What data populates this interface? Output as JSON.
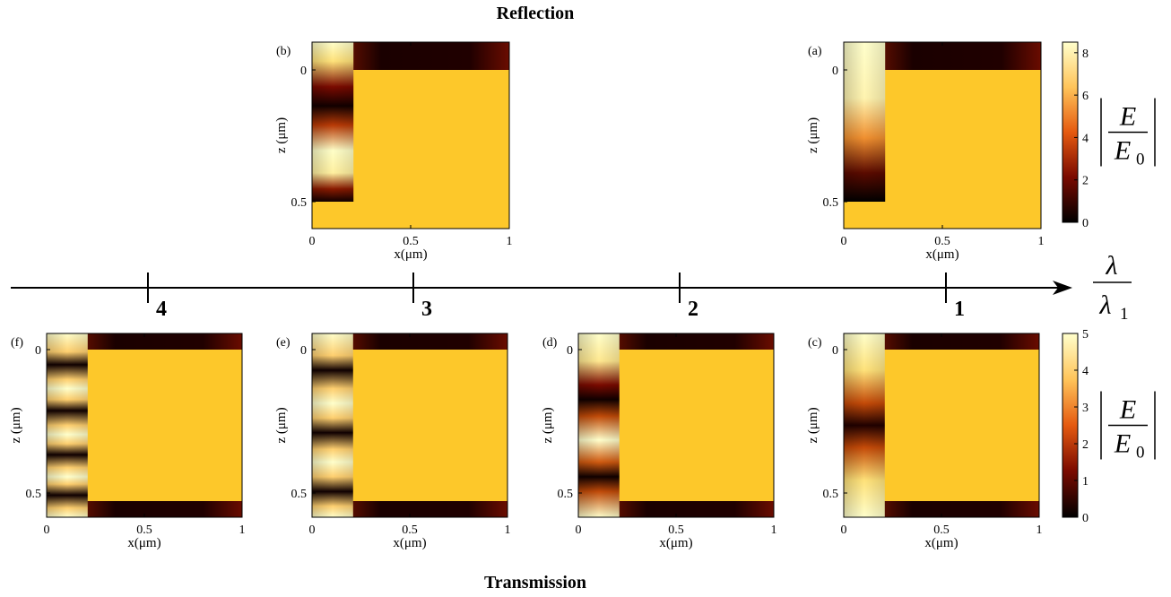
{
  "titles": {
    "top": "Reflection",
    "bottom": "Transmission"
  },
  "arrow": {
    "label_num": "λ",
    "label_den": "λ",
    "label_den_sub": "1",
    "ticks": [
      "4",
      "3",
      "2",
      "1"
    ]
  },
  "axes": {
    "xlabel": "x(μm)",
    "ylabel": "z (μm)",
    "xticks": [
      "0",
      "0.5",
      "1"
    ],
    "yticks": [
      "0",
      "0.5"
    ]
  },
  "colorbars": [
    {
      "id": "reflection",
      "ticks": [
        "8",
        "6",
        "4",
        "2",
        "0"
      ],
      "range": [
        0,
        8.5
      ],
      "label_num": "E",
      "label_den": "E",
      "label_den_sub": "0"
    },
    {
      "id": "transmission",
      "ticks": [
        "5",
        "4",
        "3",
        "2",
        "1",
        "0"
      ],
      "range": [
        0,
        5
      ],
      "label_num": "E",
      "label_den": "E",
      "label_den_sub": "0"
    }
  ],
  "panels": [
    {
      "label": "(b)",
      "mode": "reflection",
      "fringes": 2
    },
    {
      "label": "(a)",
      "mode": "reflection",
      "fringes": 1
    },
    {
      "label": "(f)",
      "mode": "transmission",
      "fringes": 4
    },
    {
      "label": "(e)",
      "mode": "transmission",
      "fringes": 3
    },
    {
      "label": "(d)",
      "mode": "transmission",
      "fringes": 2
    },
    {
      "label": "(c)",
      "mode": "transmission",
      "fringes": 1
    }
  ],
  "colors": {
    "metal": "#FDC82A",
    "colormap": [
      "#000000",
      "#7a0a00",
      "#e55a10",
      "#ffc45a",
      "#ffffcc"
    ]
  }
}
